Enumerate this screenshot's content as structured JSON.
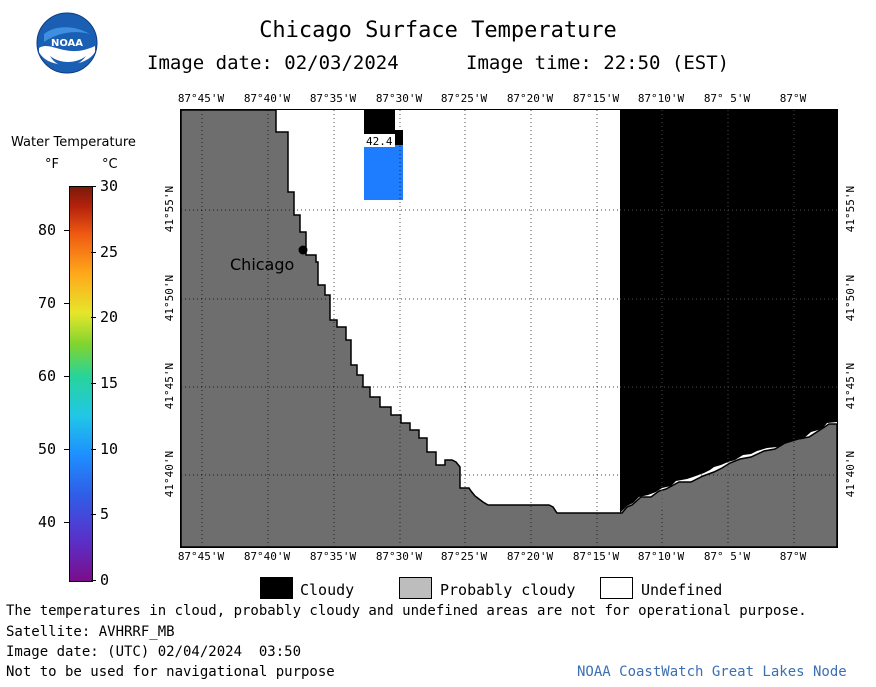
{
  "header": {
    "title": "Chicago Surface Temperature",
    "image_date": "Image date: 02/03/2024",
    "image_time": "Image time: 22:50 (EST)",
    "logo_text": "NOAA"
  },
  "colorbar": {
    "title": "Water Temperature",
    "unit_f": "°F",
    "unit_c": "°C",
    "f_ticks": [
      "80",
      "70",
      "60",
      "50",
      "40"
    ],
    "c_ticks": [
      "30",
      "25",
      "20",
      "15",
      "10",
      "5",
      "0"
    ],
    "range_f": [
      32,
      86
    ],
    "range_c": [
      0,
      30
    ]
  },
  "map": {
    "lon_ticks": [
      "87°45'W",
      "87°40'W",
      "87°35'W",
      "87°30'W",
      "87°25'W",
      "87°20'W",
      "87°15'W",
      "87°10'W",
      "87° 5'W",
      "87°W"
    ],
    "lat_ticks": [
      "41°55'N",
      "41°50'N",
      "41°45'N",
      "41°40'N"
    ],
    "city_label": "Chicago",
    "buoy_value": "42.4",
    "colors": {
      "land": "#6e6e6e",
      "cloudy": "#000000",
      "undefined": "#ffffff",
      "water_blue": "#1e7dff"
    }
  },
  "legend": {
    "cloudy": "Cloudy",
    "probably_cloudy": "Probably cloudy",
    "undefined": "Undefined"
  },
  "footer": {
    "disclaimer": "The temperatures in cloud, probably cloudy and undefined areas are not for operational purpose.",
    "satellite": "Satellite: AVHRRF_MB",
    "utc_date": "Image date: (UTC) 02/04/2024  03:50",
    "nav_warning": "Not to be used for navigational purpose",
    "credit": "NOAA CoastWatch Great Lakes Node"
  }
}
